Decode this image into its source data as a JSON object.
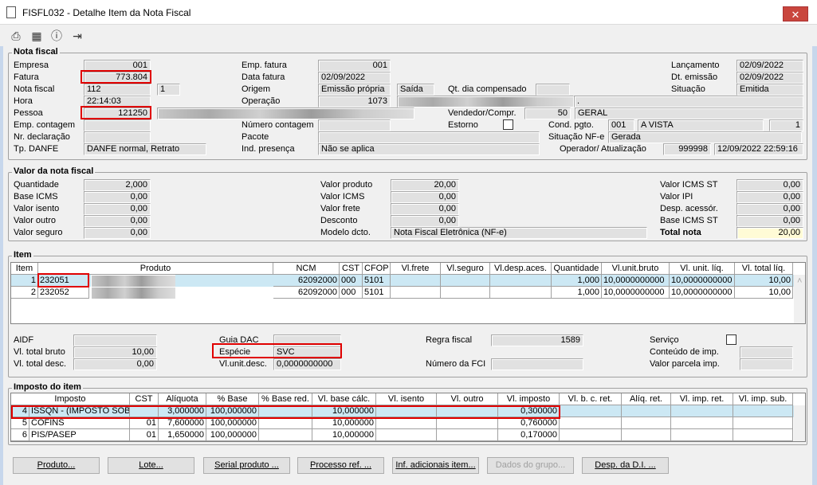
{
  "window": {
    "title": "FISFL032 - Detalhe Item da Nota Fiscal",
    "close_icon": "close-icon"
  },
  "toolbar": {
    "icons": [
      "printer-icon",
      "calendar-icon",
      "help-icon",
      "exit-icon"
    ]
  },
  "nota_fiscal": {
    "title": "Nota fiscal",
    "empresa": {
      "label": "Empresa",
      "value": "001"
    },
    "fatura": {
      "label": "Fatura",
      "value": "773.804"
    },
    "nota_fiscal": {
      "label": "Nota fiscal",
      "value": "112",
      "serie": "1"
    },
    "hora": {
      "label": "Hora",
      "value": "22:14:03"
    },
    "pessoa": {
      "label": "Pessoa",
      "value": "121250"
    },
    "emp_contagem": {
      "label": "Emp. contagem",
      "value": ""
    },
    "nr_declaracao": {
      "label": "Nr. declaração",
      "value": ""
    },
    "tp_danfe": {
      "label": "Tp. DANFE",
      "value": "DANFE normal, Retrato"
    },
    "emp_fatura": {
      "label": "Emp. fatura",
      "value": "001"
    },
    "data_fatura": {
      "label": "Data fatura",
      "value": "02/09/2022"
    },
    "origem": {
      "label": "Origem",
      "value": "Emissão própria",
      "tipo": "Saída"
    },
    "operacao": {
      "label": "Operação",
      "value": "1073",
      "extra": "."
    },
    "numero_contagem": {
      "label": "Número contagem",
      "value": ""
    },
    "pacote": {
      "label": "Pacote",
      "value": ""
    },
    "ind_presenca": {
      "label": "Ind. presença",
      "value": "Não se aplica"
    },
    "qt_dia_compensado": {
      "label": "Qt. dia compensado",
      "value": ""
    },
    "vendedor": {
      "label": "Vendedor/Compr.",
      "value": "50",
      "nome": "GERAL"
    },
    "estorno": {
      "label": "Estorno",
      "checked": false
    },
    "cond_pgto": {
      "label": "Cond. pgto.",
      "value": "001",
      "descricao": "A VISTA",
      "parcelas": "1"
    },
    "situacao_nfe": {
      "label": "Situação NF-e",
      "value": "Gerada"
    },
    "operador": {
      "label": "Operador/ Atualização",
      "value": "999998",
      "data": "12/09/2022 22:59:16"
    },
    "lancamento": {
      "label": "Lançamento",
      "value": "02/09/2022"
    },
    "dt_emissao": {
      "label": "Dt. emissão",
      "value": "02/09/2022"
    },
    "situacao": {
      "label": "Situação",
      "value": "Emitida"
    }
  },
  "valor": {
    "title": "Valor da nota fiscal",
    "quantidade": {
      "label": "Quantidade",
      "value": "2,000"
    },
    "base_icms": {
      "label": "Base ICMS",
      "value": "0,00"
    },
    "valor_isento": {
      "label": "Valor isento",
      "value": "0,00"
    },
    "valor_outro": {
      "label": "Valor outro",
      "value": "0,00"
    },
    "valor_seguro": {
      "label": "Valor seguro",
      "value": "0,00"
    },
    "valor_produto": {
      "label": "Valor produto",
      "value": "20,00"
    },
    "valor_icms": {
      "label": "Valor ICMS",
      "value": "0,00"
    },
    "valor_frete": {
      "label": "Valor frete",
      "value": "0,00"
    },
    "desconto": {
      "label": "Desconto",
      "value": "0,00"
    },
    "modelo": {
      "label": "Modelo dcto.",
      "value": "Nota Fiscal Eletrônica (NF-e)"
    },
    "valor_icms_st": {
      "label": "Valor ICMS ST",
      "value": "0,00"
    },
    "valor_ipi": {
      "label": "Valor IPI",
      "value": "0,00"
    },
    "desp_acessor": {
      "label": "Desp. acessór.",
      "value": "0,00"
    },
    "base_icms_st": {
      "label": "Base ICMS ST",
      "value": "0,00"
    },
    "total_nota": {
      "label": "Total nota",
      "value": "20,00"
    }
  },
  "item": {
    "title": "Item",
    "columns": [
      "Item",
      "Produto",
      "NCM",
      "CST",
      "CFOP",
      "Vl.frete",
      "Vl.seguro",
      "Vl.desp.aces.",
      "Quantidade",
      "Vl.unit.bruto",
      "Vl. unit. líq.",
      "Vl. total líq."
    ],
    "rows": [
      [
        "1",
        "232051",
        "62092000",
        "000",
        "5101",
        "",
        "",
        "",
        "1,000",
        "10,0000000000",
        "10,0000000000",
        "10,00"
      ],
      [
        "2",
        "232052",
        "62092000",
        "000",
        "5101",
        "",
        "",
        "",
        "1,000",
        "10,0000000000",
        "10,0000000000",
        "10,00"
      ]
    ],
    "selected_row": 0
  },
  "detalhe": {
    "aidf": {
      "label": "AIDF",
      "value": ""
    },
    "vl_total_bruto": {
      "label": "Vl. total bruto",
      "value": "10,00"
    },
    "vl_total_desc": {
      "label": "Vl. total desc.",
      "value": "0,00"
    },
    "guia_dac": {
      "label": "Guia DAC",
      "value": ""
    },
    "especie": {
      "label": "Espécie",
      "value": "SVC"
    },
    "vl_unit_desc": {
      "label": "Vl.unit.desc.",
      "value": "0,0000000000"
    },
    "regra_fiscal": {
      "label": "Regra fiscal",
      "value": "1589"
    },
    "numero_fci": {
      "label": "Número da FCI",
      "value": ""
    },
    "servico": {
      "label": "Serviço",
      "checked": false
    },
    "conteudo_imp": {
      "label": "Conteúdo de imp.",
      "value": ""
    },
    "valor_parcela_imp": {
      "label": "Valor parcela imp.",
      "value": ""
    }
  },
  "imposto": {
    "title": "Imposto do item",
    "columns": [
      "Imposto",
      "CST",
      "Alíquota",
      "% Base",
      "% Base red.",
      "Vl. base cálc.",
      "Vl. isento",
      "Vl. outro",
      "Vl. imposto",
      "Vl. b. c. ret.",
      "Alíq. ret.",
      "Vl. imp. ret.",
      "Vl. imp. sub."
    ],
    "rows": [
      [
        "4",
        "ISSQN - (IMPOSTO SOBR",
        "",
        "3,000000",
        "100,000000",
        "",
        "10,000000",
        "",
        "",
        "0,300000",
        "",
        "",
        "",
        ""
      ],
      [
        "5",
        "COFINS",
        "01",
        "7,600000",
        "100,000000",
        "",
        "10,000000",
        "",
        "",
        "0,760000",
        "",
        "",
        "",
        ""
      ],
      [
        "6",
        "PIS/PASEP",
        "01",
        "1,650000",
        "100,000000",
        "",
        "10,000000",
        "",
        "",
        "0,170000",
        "",
        "",
        "",
        ""
      ]
    ],
    "selected_row": 0
  },
  "buttons": [
    {
      "label": "Produto...",
      "enabled": true
    },
    {
      "label": "Lote...",
      "enabled": true
    },
    {
      "label": "Serial produto ...",
      "enabled": true
    },
    {
      "label": "Processo ref. ...",
      "enabled": true
    },
    {
      "label": "Inf. adicionais item...",
      "enabled": true
    },
    {
      "label": "Dados do grupo...",
      "enabled": false
    },
    {
      "label": "Desp. da D.I. ...",
      "enabled": true
    }
  ],
  "colors": {
    "highlight": "#e00000",
    "selected_row": "#cce8f4",
    "total_field": "#fffbd6",
    "close_button": "#c9463d"
  }
}
